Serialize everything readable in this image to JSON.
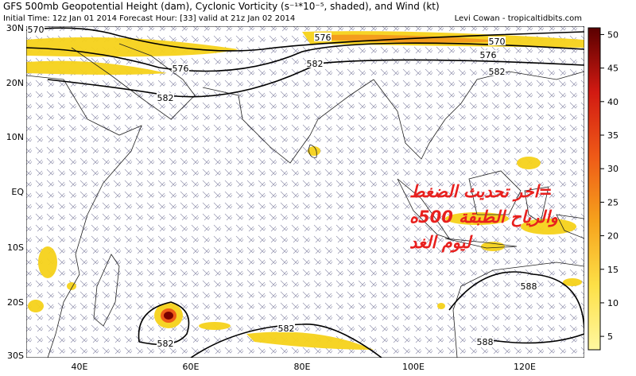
{
  "header": {
    "title": "GFS 500mb Geopotential Height (dam), Cyclonic Vorticity (s⁻¹*10⁻⁵, shaded), and Wind (kt)",
    "subtitle": "Initial Time: 12z Jan 01 2014 Forecast Hour: [33] valid at 21z Jan 02 2014",
    "credit": "Levi Cowan - tropicaltidbits.com"
  },
  "map": {
    "lat_labels": [
      "30N",
      "20N",
      "10N",
      "EQ",
      "10S",
      "20S",
      "30S"
    ],
    "lon_labels": [
      "40E",
      "60E",
      "80E",
      "100E",
      "120E"
    ],
    "contour_labels": [
      "570",
      "576",
      "582",
      "576",
      "582",
      "570",
      "576",
      "582",
      "582",
      "582",
      "588",
      "588"
    ]
  },
  "colorbar": {
    "range": [
      3,
      51
    ],
    "ticks": [
      5,
      10,
      15,
      20,
      25,
      30,
      35,
      40,
      45,
      50
    ]
  },
  "annotation": {
    "lines": [
      "=اخر تحديث الضغط",
      "والرياح الطبقة 500ه",
      "ليوم الغد"
    ]
  }
}
